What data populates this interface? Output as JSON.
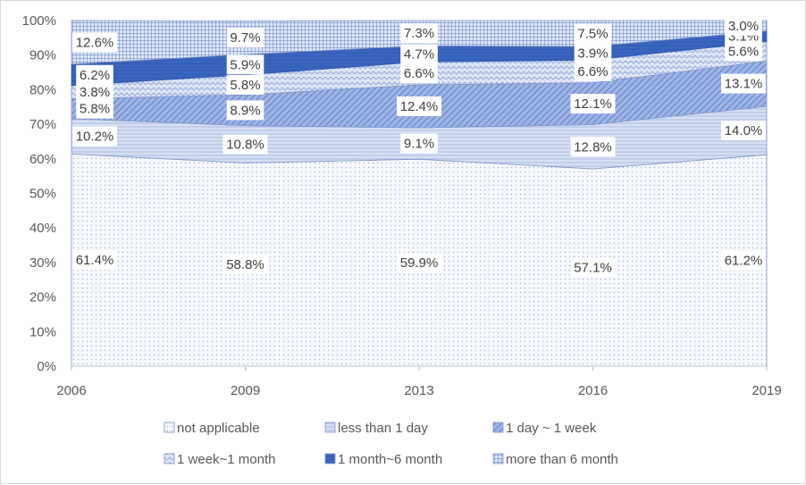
{
  "chart_data": {
    "type": "area",
    "stacked": "percent",
    "x": [
      "2006",
      "2009",
      "2013",
      "2016",
      "2019"
    ],
    "ylim": [
      0,
      100
    ],
    "y_ticks": [
      "0%",
      "10%",
      "20%",
      "30%",
      "40%",
      "50%",
      "60%",
      "70%",
      "80%",
      "90%",
      "100%"
    ],
    "series": [
      {
        "name": "not applicable",
        "values": [
          61.4,
          58.8,
          59.9,
          57.1,
          61.2
        ],
        "labels": [
          "61.4%",
          "58.8%",
          "59.9%",
          "57.1%",
          "61.2%"
        ],
        "color": "#eef1f8",
        "pattern": "dots"
      },
      {
        "name": "less than 1 day",
        "values": [
          10.2,
          10.8,
          9.1,
          12.8,
          14.0
        ],
        "labels": [
          "10.2%",
          "10.8%",
          "9.1%",
          "12.8%",
          "14.0%"
        ],
        "color": "#c7d3ee",
        "pattern": "lines"
      },
      {
        "name": "1 day ~ 1 week",
        "values": [
          5.8,
          8.9,
          12.4,
          12.1,
          13.1
        ],
        "labels": [
          "5.8%",
          "8.9%",
          "12.4%",
          "12.1%",
          "13.1%"
        ],
        "color": "#7f9bd6",
        "pattern": "diag"
      },
      {
        "name": "1 week~1 month",
        "values": [
          3.8,
          5.8,
          6.6,
          6.6,
          5.6
        ],
        "labels": [
          "3.8%",
          "5.8%",
          "6.6%",
          "6.6%",
          "5.6%"
        ],
        "color": "#b7c7ea",
        "pattern": "zigzag"
      },
      {
        "name": "1 month~6 month",
        "values": [
          6.2,
          5.9,
          4.7,
          3.9,
          3.1
        ],
        "labels": [
          "6.2%",
          "5.9%",
          "4.7%",
          "3.9%",
          "3.1%"
        ],
        "color": "#3a66c0",
        "pattern": "solid"
      },
      {
        "name": "more than 6 month",
        "values": [
          12.6,
          9.7,
          7.3,
          7.5,
          3.0
        ],
        "labels": [
          "12.6%",
          "9.7%",
          "7.3%",
          "7.5%",
          "3.0%"
        ],
        "color": "#8fa7dd",
        "pattern": "grid"
      }
    ],
    "legend_position": "bottom",
    "grid": false
  }
}
